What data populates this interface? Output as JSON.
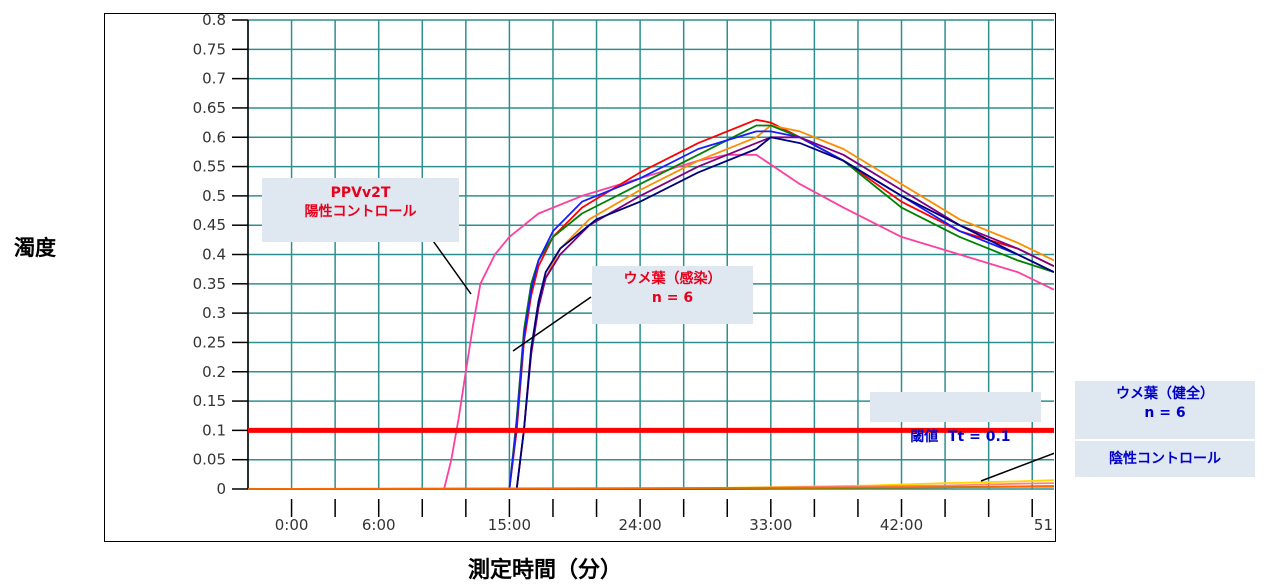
{
  "chart_data": {
    "type": "line",
    "ylabel": "濁度",
    "xlabel": "測定時間（分）",
    "y_ticks": [
      "0.8",
      "0.75",
      "0.7",
      "0.65",
      "0.6",
      "0.55",
      "0.5",
      "0.45",
      "0.4",
      "0.35",
      "0.3",
      "0.25",
      "0.2",
      "0.15",
      "0.1",
      "0.05",
      "0"
    ],
    "x_ticks": [
      "0:00",
      "6:00",
      "15:00",
      "24:00",
      "33:00",
      "42:00",
      "51"
    ],
    "x_tick_minutes": [
      0,
      6,
      15,
      24,
      33,
      42,
      51
    ],
    "xlim": [
      -3,
      52.5
    ],
    "ylim": [
      0,
      0.8
    ],
    "grid": true,
    "threshold": {
      "value": 0.1,
      "label": "閾値  Tt = 0.1",
      "color": "#ff0000"
    },
    "annotations": {
      "positive": [
        "PPVv2T",
        "陽性コントロール"
      ],
      "infected": [
        "ウメ葉（感染）",
        "n = 6"
      ],
      "healthy": [
        "ウメ葉（健全）",
        "n = 6"
      ],
      "negative": "陰性コントロール"
    },
    "series": [
      {
        "color": "#ff3fa0",
        "x": [
          -3,
          10.5,
          11,
          11.5,
          12,
          12.5,
          13,
          14,
          15,
          17,
          20,
          24,
          28,
          30,
          32,
          35,
          38,
          42,
          46,
          50,
          52.5
        ],
        "y": [
          0,
          0,
          0.05,
          0.12,
          0.2,
          0.28,
          0.35,
          0.4,
          0.43,
          0.47,
          0.5,
          0.53,
          0.56,
          0.57,
          0.57,
          0.52,
          0.48,
          0.43,
          0.4,
          0.37,
          0.34
        ]
      },
      {
        "color": "#ff0000",
        "x": [
          -3,
          15,
          15.5,
          16,
          16.5,
          17,
          18,
          20,
          24,
          28,
          32,
          33,
          35,
          38,
          42,
          46,
          50,
          52.5
        ],
        "y": [
          0,
          0,
          0.1,
          0.25,
          0.33,
          0.38,
          0.43,
          0.48,
          0.54,
          0.59,
          0.63,
          0.625,
          0.6,
          0.56,
          0.49,
          0.44,
          0.41,
          0.38
        ]
      },
      {
        "color": "#ff8c00",
        "x": [
          -3,
          15.5,
          16,
          16.5,
          17,
          17.5,
          18.5,
          20.5,
          24,
          28,
          32,
          33,
          35,
          38,
          42,
          46,
          50,
          52.5
        ],
        "y": [
          0,
          0,
          0.1,
          0.24,
          0.31,
          0.36,
          0.41,
          0.46,
          0.51,
          0.56,
          0.6,
          0.62,
          0.61,
          0.58,
          0.52,
          0.46,
          0.42,
          0.39
        ]
      },
      {
        "color": "#008000",
        "x": [
          -3,
          15,
          15.5,
          16,
          16.5,
          17,
          18,
          20,
          24,
          28,
          32,
          33,
          35,
          38,
          42,
          46,
          50,
          52.5
        ],
        "y": [
          0,
          0,
          0.12,
          0.27,
          0.35,
          0.39,
          0.43,
          0.47,
          0.52,
          0.57,
          0.62,
          0.62,
          0.6,
          0.56,
          0.48,
          0.43,
          0.39,
          0.37
        ]
      },
      {
        "color": "#1a1aff",
        "x": [
          -3,
          15,
          15.5,
          16,
          16.5,
          17,
          18,
          20,
          24,
          28,
          32,
          33,
          35,
          38,
          42,
          46,
          50,
          52.5
        ],
        "y": [
          0,
          0,
          0.11,
          0.26,
          0.34,
          0.39,
          0.44,
          0.49,
          0.53,
          0.58,
          0.61,
          0.61,
          0.6,
          0.56,
          0.5,
          0.44,
          0.4,
          0.37
        ]
      },
      {
        "color": "#800080",
        "x": [
          -3,
          15.5,
          16,
          16.5,
          17,
          17.5,
          18.5,
          20.5,
          24,
          28,
          32,
          33,
          35,
          38,
          42,
          46,
          50,
          52.5
        ],
        "y": [
          0,
          0,
          0.1,
          0.23,
          0.31,
          0.36,
          0.4,
          0.45,
          0.5,
          0.55,
          0.59,
          0.6,
          0.6,
          0.57,
          0.51,
          0.45,
          0.41,
          0.38
        ]
      },
      {
        "color": "#000080",
        "x": [
          -3,
          15.5,
          16,
          16.5,
          17,
          17.5,
          18.5,
          21,
          24,
          28,
          32,
          33,
          35,
          38,
          42,
          46,
          50,
          52.5
        ],
        "y": [
          0,
          0,
          0.1,
          0.24,
          0.32,
          0.37,
          0.41,
          0.46,
          0.49,
          0.54,
          0.58,
          0.6,
          0.59,
          0.56,
          0.5,
          0.45,
          0.4,
          0.37
        ]
      },
      {
        "color": "#ffd700",
        "x": [
          -3,
          20,
          30,
          40,
          45,
          50,
          52.5
        ],
        "y": [
          0,
          0,
          0.002,
          0.006,
          0.01,
          0.013,
          0.015
        ]
      },
      {
        "color": "#ff8080",
        "x": [
          -3,
          25,
          35,
          45,
          50,
          52.5
        ],
        "y": [
          0,
          0,
          0.003,
          0.006,
          0.009,
          0.01
        ]
      },
      {
        "color": "#00a000",
        "x": [
          -3,
          30,
          45,
          52.5
        ],
        "y": [
          0,
          0,
          0.003,
          0.005
        ]
      },
      {
        "color": "#ff6600",
        "x": [
          -3,
          35,
          52.5
        ],
        "y": [
          0,
          0.002,
          0.004
        ]
      }
    ]
  }
}
